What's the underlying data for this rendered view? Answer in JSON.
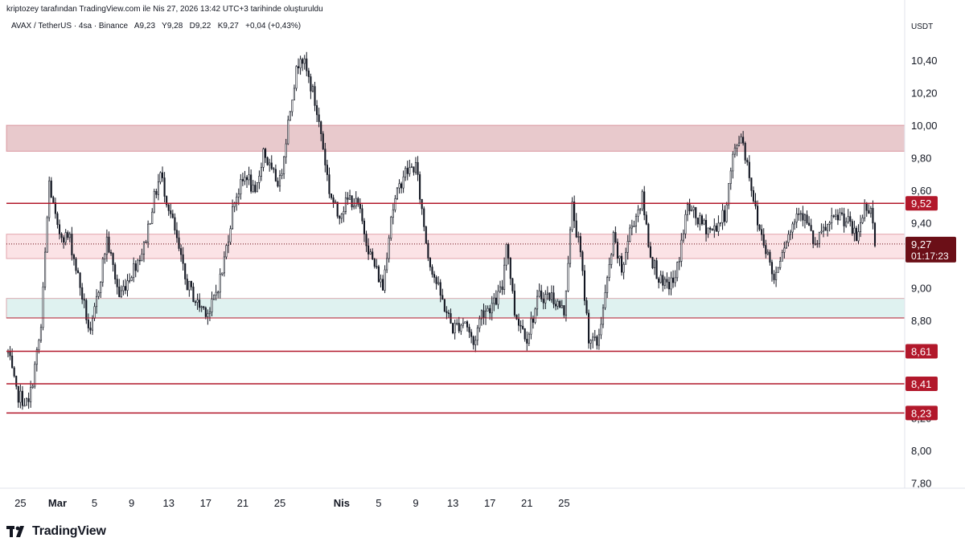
{
  "header": {
    "attribution": "kriptozey tarafından TradingView.com ile Nis 27, 2026 13:42 UTC+3 tarihinde oluşturuldu"
  },
  "legend": {
    "symbol": "AVAX / TetherUS · 4sa · Binance",
    "open": "A9,23",
    "high": "Y9,28",
    "low": "D9,22",
    "close": "K9,27",
    "change": "+0,04 (+0,43%)"
  },
  "currency": "USDT",
  "brand": "TradingView",
  "colors": {
    "candle": "#131722",
    "line": "#b2182b",
    "resistance_zone": "#e8c9cc",
    "pink_zone": "#fbe3e6",
    "green_zone": "#dff2f0",
    "label_bg": "#b2182b",
    "current_bg": "#6b0f17"
  },
  "chart_data": {
    "type": "candlestick",
    "y_axis": {
      "ticks": [
        "7,80",
        "8,00",
        "8,20",
        "8,40",
        "8,60",
        "8,80",
        "9,00",
        "9,20",
        "9,40",
        "9,60",
        "9,80",
        "10,00",
        "10,20",
        "10,40"
      ],
      "range": [
        7.7,
        10.55
      ]
    },
    "x_axis": {
      "ticks": [
        "25",
        "Mar",
        "5",
        "9",
        "13",
        "17",
        "21",
        "25",
        "Nis",
        "5",
        "9",
        "13",
        "17",
        "21",
        "25"
      ],
      "bold_ticks": [
        "Mar",
        "Nis"
      ]
    },
    "horizontal_lines": [
      {
        "value": 9.52,
        "label": "9,52"
      },
      {
        "value": 8.61,
        "label": "8,61"
      },
      {
        "value": 8.41,
        "label": "8,41"
      },
      {
        "value": 8.23,
        "label": "8,23"
      },
      {
        "value": 8.815,
        "label": ""
      }
    ],
    "zones": [
      {
        "from": 9.84,
        "to": 10.0,
        "kind": "resistance"
      },
      {
        "from": 9.18,
        "to": 9.33,
        "kind": "pink"
      },
      {
        "from": 8.815,
        "to": 8.935,
        "kind": "green"
      }
    ],
    "current_price": {
      "value": 9.27,
      "label": "9,27",
      "countdown": "01:17:23"
    },
    "anchor_points": [
      {
        "i": 0,
        "p": 8.6
      },
      {
        "i": 4,
        "p": 8.35
      },
      {
        "i": 10,
        "p": 8.28
      },
      {
        "i": 16,
        "p": 8.75
      },
      {
        "i": 20,
        "p": 9.65
      },
      {
        "i": 24,
        "p": 9.35
      },
      {
        "i": 30,
        "p": 9.3
      },
      {
        "i": 36,
        "p": 8.95
      },
      {
        "i": 40,
        "p": 8.7
      },
      {
        "i": 44,
        "p": 9.0
      },
      {
        "i": 48,
        "p": 9.3
      },
      {
        "i": 54,
        "p": 8.95
      },
      {
        "i": 60,
        "p": 9.1
      },
      {
        "i": 66,
        "p": 9.25
      },
      {
        "i": 70,
        "p": 9.5
      },
      {
        "i": 74,
        "p": 9.7
      },
      {
        "i": 80,
        "p": 9.4
      },
      {
        "i": 86,
        "p": 9.05
      },
      {
        "i": 92,
        "p": 8.9
      },
      {
        "i": 98,
        "p": 8.85
      },
      {
        "i": 104,
        "p": 9.1
      },
      {
        "i": 110,
        "p": 9.55
      },
      {
        "i": 116,
        "p": 9.7
      },
      {
        "i": 120,
        "p": 9.55
      },
      {
        "i": 124,
        "p": 9.85
      },
      {
        "i": 128,
        "p": 9.7
      },
      {
        "i": 132,
        "p": 9.65
      },
      {
        "i": 138,
        "p": 10.2
      },
      {
        "i": 142,
        "p": 10.45
      },
      {
        "i": 148,
        "p": 10.2
      },
      {
        "i": 152,
        "p": 9.95
      },
      {
        "i": 156,
        "p": 9.6
      },
      {
        "i": 160,
        "p": 9.45
      },
      {
        "i": 166,
        "p": 9.55
      },
      {
        "i": 170,
        "p": 9.5
      },
      {
        "i": 176,
        "p": 9.2
      },
      {
        "i": 182,
        "p": 9.0
      },
      {
        "i": 186,
        "p": 9.45
      },
      {
        "i": 192,
        "p": 9.7
      },
      {
        "i": 198,
        "p": 9.75
      },
      {
        "i": 204,
        "p": 9.2
      },
      {
        "i": 210,
        "p": 8.95
      },
      {
        "i": 216,
        "p": 8.75
      },
      {
        "i": 222,
        "p": 8.8
      },
      {
        "i": 226,
        "p": 8.65
      },
      {
        "i": 230,
        "p": 8.85
      },
      {
        "i": 236,
        "p": 8.9
      },
      {
        "i": 240,
        "p": 9.0
      },
      {
        "i": 242,
        "p": 9.3
      },
      {
        "i": 246,
        "p": 8.85
      },
      {
        "i": 252,
        "p": 8.7
      },
      {
        "i": 258,
        "p": 8.95
      },
      {
        "i": 264,
        "p": 8.95
      },
      {
        "i": 270,
        "p": 8.85
      },
      {
        "i": 274,
        "p": 9.5
      },
      {
        "i": 278,
        "p": 9.2
      },
      {
        "i": 282,
        "p": 8.7
      },
      {
        "i": 286,
        "p": 8.65
      },
      {
        "i": 290,
        "p": 8.95
      },
      {
        "i": 294,
        "p": 9.3
      },
      {
        "i": 298,
        "p": 9.1
      },
      {
        "i": 302,
        "p": 9.35
      },
      {
        "i": 308,
        "p": 9.55
      },
      {
        "i": 312,
        "p": 9.2
      },
      {
        "i": 318,
        "p": 9.0
      },
      {
        "i": 324,
        "p": 9.05
      },
      {
        "i": 330,
        "p": 9.5
      },
      {
        "i": 336,
        "p": 9.4
      },
      {
        "i": 342,
        "p": 9.35
      },
      {
        "i": 348,
        "p": 9.45
      },
      {
        "i": 352,
        "p": 9.8
      },
      {
        "i": 356,
        "p": 9.95
      },
      {
        "i": 360,
        "p": 9.7
      },
      {
        "i": 364,
        "p": 9.4
      },
      {
        "i": 368,
        "p": 9.25
      },
      {
        "i": 372,
        "p": 9.05
      },
      {
        "i": 376,
        "p": 9.25
      },
      {
        "i": 380,
        "p": 9.35
      },
      {
        "i": 384,
        "p": 9.5
      },
      {
        "i": 388,
        "p": 9.4
      },
      {
        "i": 392,
        "p": 9.25
      },
      {
        "i": 396,
        "p": 9.35
      },
      {
        "i": 400,
        "p": 9.4
      },
      {
        "i": 404,
        "p": 9.45
      },
      {
        "i": 408,
        "p": 9.4
      },
      {
        "i": 412,
        "p": 9.3
      },
      {
        "i": 416,
        "p": 9.5
      },
      {
        "i": 419,
        "p": 9.5
      },
      {
        "i": 421,
        "p": 9.27
      }
    ],
    "date_ticks_at": [
      {
        "label": "25",
        "i": 6
      },
      {
        "label": "Mar",
        "i": 24
      },
      {
        "label": "5",
        "i": 42
      },
      {
        "label": "9",
        "i": 60
      },
      {
        "label": "13",
        "i": 78
      },
      {
        "label": "17",
        "i": 96
      },
      {
        "label": "21",
        "i": 114
      },
      {
        "label": "25",
        "i": 132
      },
      {
        "label": "Nis",
        "i": 162
      },
      {
        "label": "5",
        "i": 180
      },
      {
        "label": "9",
        "i": 198
      },
      {
        "label": "13",
        "i": 216
      },
      {
        "label": "17",
        "i": 234
      },
      {
        "label": "21",
        "i": 252
      },
      {
        "label": "25",
        "i": 270
      }
    ]
  }
}
